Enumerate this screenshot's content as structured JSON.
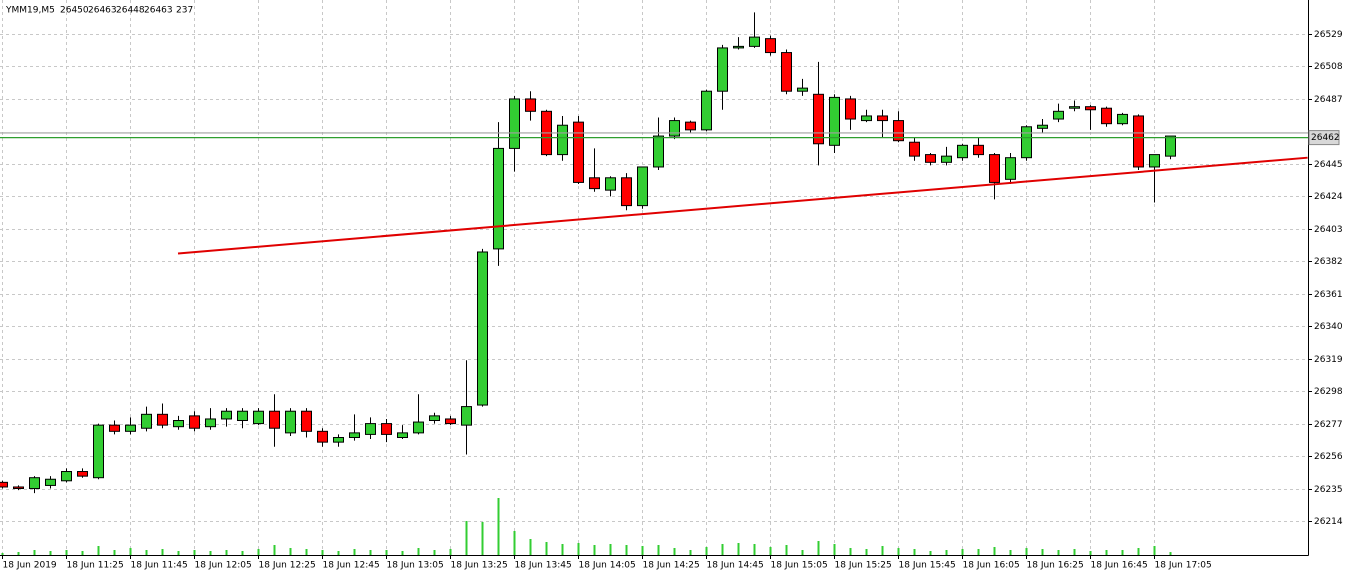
{
  "chart_data": {
    "type": "candlestick",
    "title": "YMM19,M5",
    "categories": [
      "18 Jun 2019",
      null,
      null,
      null,
      "18 Jun 11:25",
      null,
      null,
      null,
      "18 Jun 11:45",
      null,
      null,
      null,
      "18 Jun 12:05",
      null,
      null,
      null,
      "18 Jun 12:25",
      null,
      null,
      null,
      "18 Jun 12:45",
      null,
      null,
      null,
      "18 Jun 13:05",
      null,
      null,
      null,
      "18 Jun 13:25",
      null,
      null,
      null,
      "18 Jun 13:45",
      null,
      null,
      null,
      "18 Jun 14:05",
      null,
      null,
      null,
      "18 Jun 14:25",
      null,
      null,
      null,
      "18 Jun 14:45",
      null,
      null,
      null,
      "18 Jun 15:05",
      null,
      null,
      null,
      "18 Jun 15:25",
      null,
      null,
      null,
      "18 Jun 15:45",
      null,
      null,
      null,
      "18 Jun 16:05",
      null,
      null,
      null,
      "18 Jun 16:25",
      null,
      null,
      null,
      "18 Jun 16:45",
      null,
      null,
      null,
      "18 Jun 17:05",
      null
    ],
    "open": [
      26239,
      26236,
      26235,
      26237,
      26240,
      26246,
      26242,
      26276,
      26272,
      26274,
      26283,
      26275,
      26282,
      26275,
      26280,
      26279,
      26277,
      26285,
      26271,
      26285,
      26272,
      26265,
      26268,
      26270,
      26277,
      26268,
      26271,
      26279,
      26280,
      26276,
      26289,
      26390,
      26455,
      26487,
      26479,
      26451,
      26472,
      26436,
      26428,
      26436,
      26418,
      26443,
      26463,
      26472,
      26467,
      26492,
      26520,
      26521,
      26526,
      26517,
      26492,
      26490,
      26457,
      26487,
      26473,
      26476,
      26473,
      26459,
      26451,
      26446,
      26449,
      26457,
      26451,
      26435,
      26449,
      26468,
      26474,
      26481,
      26482,
      26481,
      26471,
      26476,
      26443,
      26450
    ],
    "high": [
      26240,
      26237,
      26243,
      26243,
      26248,
      26248,
      26277,
      26279,
      26281,
      26288,
      26290,
      26282,
      26285,
      26287,
      26287,
      26287,
      26287,
      26296,
      26287,
      26287,
      26274,
      26270,
      26283,
      26281,
      26280,
      26276,
      26296,
      26284,
      26282,
      26318,
      26390,
      26472,
      26489,
      26492,
      26480,
      26476,
      26476,
      26455,
      26437,
      26439,
      26443,
      26475,
      26475,
      26473,
      26493,
      26522,
      26527,
      26543,
      26528,
      26519,
      26500,
      26511,
      26490,
      26489,
      26480,
      26480,
      26479,
      26462,
      26452,
      26456,
      26458,
      26462,
      26452,
      26452,
      26470,
      26474,
      26484,
      26486,
      26483,
      26482,
      26478,
      26477,
      26451,
      26463
    ],
    "low": [
      26235,
      26234,
      26232,
      26235,
      26239,
      26242,
      26241,
      26270,
      26270,
      26272,
      26274,
      26273,
      26272,
      26273,
      26275,
      26274,
      26276,
      26262,
      26269,
      26268,
      26262,
      26262,
      26266,
      26267,
      26265,
      26267,
      26270,
      26277,
      26276,
      26257,
      26288,
      26379,
      26440,
      26473,
      26450,
      26447,
      26432,
      26427,
      26424,
      26415,
      26416,
      26441,
      26461,
      26465,
      26466,
      26480,
      26519,
      26520,
      26515,
      26490,
      26489,
      26444,
      26452,
      26467,
      26472,
      26462,
      26459,
      26447,
      26444,
      26444,
      26447,
      26449,
      26422,
      26432,
      26447,
      26465,
      26472,
      26479,
      26467,
      26469,
      26470,
      26441,
      26420,
      26448
    ],
    "close": [
      26236,
      26235,
      26242,
      26241,
      26246,
      26243,
      26276,
      26272,
      26276,
      26283,
      26276,
      26279,
      26274,
      26280,
      26285,
      26285,
      26285,
      26274,
      26285,
      26272,
      26265,
      26268,
      26271,
      26277,
      26270,
      26271,
      26278,
      26282,
      26277,
      26288,
      26388,
      26455,
      26487,
      26479,
      26451,
      26470,
      26433,
      26429,
      26436,
      26418,
      26443,
      26463,
      26473,
      26467,
      26492,
      26520,
      26521,
      26527,
      26517,
      26492,
      26494,
      26458,
      26488,
      26474,
      26476,
      26473,
      26460,
      26450,
      26446,
      26450,
      26457,
      26451,
      26433,
      26449,
      26469,
      26470,
      26479,
      26482,
      26480,
      26471,
      26477,
      26443,
      26451,
      26463
    ],
    "volume": [
      160,
      240,
      400,
      320,
      400,
      320,
      720,
      400,
      560,
      400,
      480,
      320,
      400,
      320,
      400,
      320,
      480,
      800,
      560,
      480,
      400,
      320,
      480,
      400,
      400,
      320,
      560,
      400,
      480,
      2720,
      2640,
      4560,
      1920,
      1280,
      1040,
      880,
      960,
      800,
      880,
      800,
      720,
      800,
      560,
      400,
      640,
      880,
      960,
      880,
      640,
      800,
      400,
      1120,
      880,
      560,
      480,
      720,
      560,
      480,
      320,
      400,
      480,
      480,
      640,
      400,
      560,
      480,
      400,
      480,
      320,
      400,
      400,
      560,
      720,
      237
    ],
    "up_color": "#32cd32",
    "down_color": "#ff0000",
    "volume_color": "#32cd32",
    "ylim": [
      26192,
      26551
    ],
    "yticks": [
      26214,
      26235,
      26256,
      26277,
      26298,
      26319,
      26340,
      26361,
      26382,
      26403,
      26424,
      26445,
      26487,
      26508,
      26529
    ],
    "grid": true,
    "price_line": {
      "value": 26462,
      "color": "#2e9e2e"
    },
    "ask_line": {
      "value": 26465,
      "color": "#a0a0a0"
    },
    "trendline": {
      "x": [
        11,
        81.6
      ],
      "y": [
        26387,
        26449
      ],
      "color": "#e00000"
    }
  }
}
